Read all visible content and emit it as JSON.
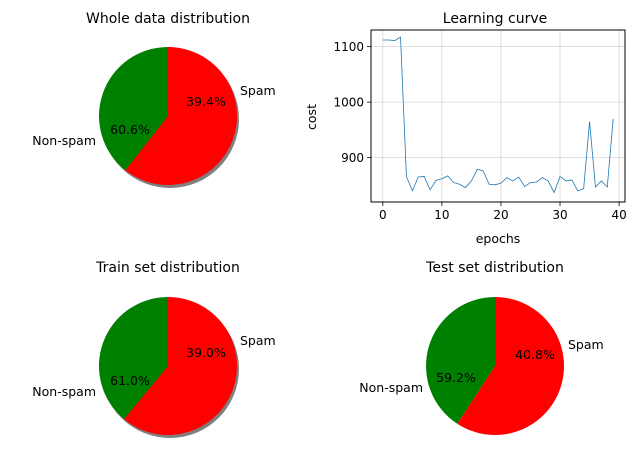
{
  "chart_data": [
    {
      "type": "pie",
      "title": "Whole data distribution",
      "labels": [
        "Spam",
        "Non-spam"
      ],
      "values": [
        39.4,
        60.6
      ],
      "value_labels": [
        "39.4%",
        "60.6%"
      ],
      "colors": [
        "#008000",
        "#ff0000"
      ],
      "start_angle": "top (90°), counter-clockwise from Spam",
      "shadow": true
    },
    {
      "type": "line",
      "title": "Learning curve",
      "xlabel": "epochs",
      "ylabel": "cost",
      "xlim": [
        -2,
        41
      ],
      "ylim": [
        820,
        1130
      ],
      "xticks": [
        0,
        10,
        20,
        30,
        40
      ],
      "yticks": [
        900,
        1000,
        1100
      ],
      "grid": true,
      "series": [
        {
          "color": "#1f77b4",
          "x": [
            0,
            1,
            2,
            3,
            4,
            5,
            6,
            7,
            8,
            9,
            10,
            11,
            12,
            13,
            14,
            15,
            16,
            17,
            18,
            19,
            20,
            21,
            22,
            23,
            24,
            25,
            26,
            27,
            28,
            29,
            30,
            31,
            32,
            33,
            34,
            35,
            36,
            37,
            38,
            39
          ],
          "values": [
            1112,
            1112,
            1111,
            1117,
            866,
            840,
            865,
            866,
            842,
            859,
            862,
            867,
            855,
            852,
            846,
            858,
            879,
            876,
            852,
            851,
            854,
            864,
            858,
            865,
            848,
            855,
            856,
            864,
            858,
            837,
            866,
            858,
            860,
            840,
            844,
            965,
            847,
            858,
            847,
            970
          ]
        }
      ]
    },
    {
      "type": "pie",
      "title": "Train set distribution",
      "labels": [
        "Spam",
        "Non-spam"
      ],
      "values": [
        39.0,
        61.0
      ],
      "value_labels": [
        "39.0%",
        "61.0%"
      ],
      "colors": [
        "#008000",
        "#ff0000"
      ],
      "shadow": true
    },
    {
      "type": "pie",
      "title": "Test set distribution",
      "labels": [
        "Spam",
        "Non-spam"
      ],
      "values": [
        40.8,
        59.2
      ],
      "value_labels": [
        "40.8%",
        "59.2%"
      ],
      "colors": [
        "#008000",
        "#ff0000"
      ],
      "shadow": false
    }
  ]
}
